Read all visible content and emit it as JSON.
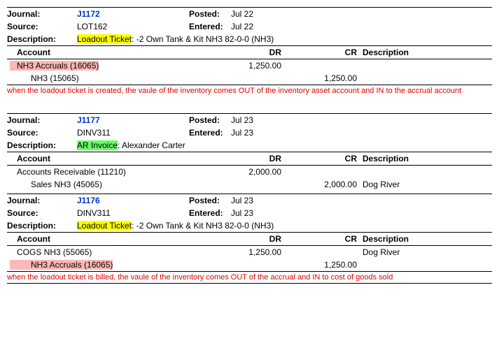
{
  "labels": {
    "journal": "Journal:",
    "posted": "Posted:",
    "source": "Source:",
    "entered": "Entered:",
    "description": "Description:",
    "account": "Account",
    "dr": "DR",
    "cr": "CR",
    "desc_col": "Description"
  },
  "entries": [
    {
      "journal": "J1172",
      "posted": "Jul 22",
      "source": "LOT162",
      "entered": "Jul 22",
      "desc_hl": "Loadout Ticket",
      "desc_hl_class": "hl-yellow",
      "desc_rest": ": -2 Own Tank & Kit NH3 82-0-0 (NH3)",
      "lines": [
        {
          "acct": "NH3 Accruals (16065)",
          "acct_hl": "hl-pink",
          "indent": "indent2",
          "dr": "1,250.00",
          "cr": "",
          "desc": ""
        },
        {
          "acct": "NH3 (15065)",
          "acct_hl": "",
          "indent": "indent",
          "dr": "",
          "cr": "1,250.00",
          "desc": ""
        }
      ],
      "note": "when the loadout ticket is created, the vaule of the inventory comes OUT of the inventory asset account and IN to the accrual account"
    },
    {
      "journal": "J1177",
      "posted": "Jul 23",
      "source": "DINV311",
      "entered": "Jul 23",
      "desc_hl": "AR Invoice",
      "desc_hl_class": "hl-green",
      "desc_rest": ": Alexander Carter",
      "lines": [
        {
          "acct": "Accounts Receivable (11210)",
          "acct_hl": "",
          "indent": "indent2",
          "dr": "2,000.00",
          "cr": "",
          "desc": ""
        },
        {
          "acct": "Sales NH3 (45065)",
          "acct_hl": "",
          "indent": "indent",
          "dr": "",
          "cr": "2,000.00",
          "desc": "Dog River"
        }
      ],
      "note": ""
    },
    {
      "journal": "J1176",
      "posted": "Jul 23",
      "source": "DINV311",
      "entered": "Jul 23",
      "desc_hl": "Loadout Ticket",
      "desc_hl_class": "hl-yellow",
      "desc_rest": ": -2 Own Tank & Kit NH3 82-0-0 (NH3)",
      "lines": [
        {
          "acct": "COGS NH3 (55065)",
          "acct_hl": "",
          "indent": "indent2",
          "dr": "1,250.00",
          "cr": "",
          "desc": "Dog River"
        },
        {
          "acct": "NH3 Accruals (16065)",
          "acct_hl": "hl-pink",
          "indent": "indent",
          "dr": "",
          "cr": "1,250.00",
          "desc": ""
        }
      ],
      "note": "when the loadout ticket is billed, the vaule of the inventory comes OUT of the accrual and IN to cost of goods sold"
    }
  ]
}
